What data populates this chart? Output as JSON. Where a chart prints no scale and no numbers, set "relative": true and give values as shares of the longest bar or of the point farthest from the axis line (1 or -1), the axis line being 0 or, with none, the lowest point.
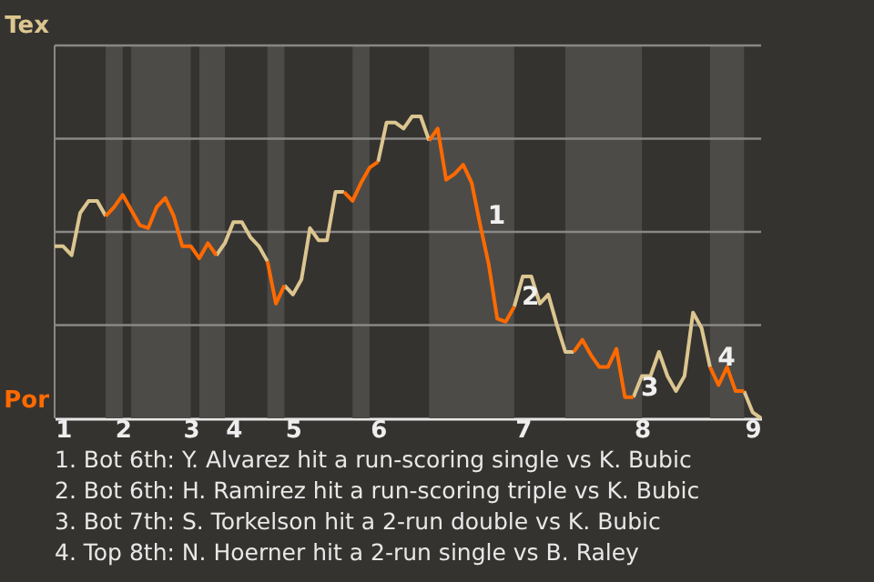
{
  "chart_data": {
    "type": "line",
    "relative": true,
    "categories": [
      null,
      "1",
      null,
      null,
      null,
      null,
      null,
      null,
      "2",
      null,
      null,
      null,
      null,
      null,
      null,
      null,
      "3",
      null,
      null,
      null,
      null,
      "4",
      null,
      null,
      null,
      null,
      null,
      null,
      "5",
      null,
      null,
      null,
      null,
      null,
      null,
      null,
      null,
      null,
      "6",
      null,
      null,
      null,
      null,
      null,
      null,
      null,
      null,
      null,
      null,
      null,
      null,
      null,
      null,
      null,
      null,
      "7",
      null,
      null,
      null,
      null,
      null,
      null,
      null,
      null,
      null,
      null,
      null,
      null,
      null,
      "8",
      null,
      null,
      null,
      null,
      null,
      null,
      null,
      null,
      null,
      null,
      null,
      null,
      "9",
      null
    ],
    "grid": "y",
    "marker": "none",
    "line_style": "solid",
    "series": [
      {
        "color": "#ff6a00",
        "values": [
          null,
          null,
          null,
          null,
          null,
          null,
          0.67,
          0.7,
          0.74,
          0.69,
          0.64,
          0.63,
          0.7,
          0.73,
          0.67,
          0.57,
          0.57,
          0.53,
          0.58,
          0.54,
          null,
          null,
          null,
          null,
          null,
          0.52,
          0.38,
          0.44,
          null,
          null,
          null,
          null,
          null,
          null,
          0.75,
          0.72,
          0.78,
          0.83,
          0.85,
          null,
          null,
          null,
          null,
          null,
          0.92,
          0.96,
          0.79,
          0.81,
          0.84,
          0.78,
          0.64,
          0.51,
          0.33,
          0.32,
          0.37,
          null,
          null,
          null,
          null,
          null,
          null,
          0.22,
          0.26,
          0.21,
          0.17,
          0.17,
          0.23,
          0.07,
          0.07,
          null,
          null,
          null,
          null,
          null,
          null,
          null,
          null,
          0.17,
          0.11,
          0.17,
          0.09,
          0.09,
          null,
          null
        ]
      },
      {
        "color": "#dcc690",
        "values": [
          0.57,
          0.57,
          0.54,
          0.68,
          0.72,
          0.72,
          0.67,
          null,
          null,
          null,
          null,
          null,
          null,
          null,
          null,
          null,
          null,
          null,
          null,
          0.54,
          0.58,
          0.65,
          0.65,
          0.6,
          0.57,
          0.52,
          null,
          0.44,
          0.41,
          0.46,
          0.63,
          0.59,
          0.59,
          0.75,
          0.75,
          null,
          null,
          null,
          0.85,
          0.98,
          0.98,
          0.96,
          1,
          1,
          0.92,
          null,
          null,
          null,
          null,
          null,
          null,
          null,
          null,
          null,
          0.37,
          0.47,
          0.47,
          0.38,
          0.41,
          0.31,
          0.22,
          0.22,
          null,
          null,
          null,
          null,
          null,
          null,
          0.07,
          0.14,
          0.14,
          0.22,
          0.14,
          0.09,
          0.14,
          0.35,
          0.3,
          0.17,
          null,
          null,
          null,
          0.09,
          0.02,
          0
        ]
      }
    ],
    "annotations": [
      "Tex",
      "Por",
      "1",
      "2",
      "3",
      "4",
      "1. Bot 6th: Y. Alvarez hit a run-scoring single vs K. Bubic",
      "2. Bot 6th: H. Ramirez hit a run-scoring triple vs K. Bubic",
      "3. Bot 7th: S. Torkelson hit a 2-run double vs K. Bubic",
      "4. Top 8th: N. Hoerner hit a 2-run single vs B. Raley"
    ]
  }
}
